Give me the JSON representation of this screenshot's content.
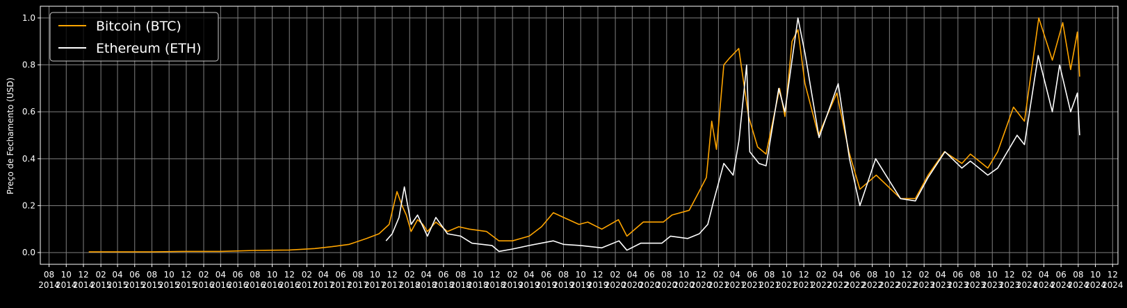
{
  "chart_data": {
    "type": "line",
    "title": "",
    "xlabel": "",
    "ylabel": "Preço de Fechamento (USD)",
    "xlim": [
      "2014-07-01",
      "2024-12-20"
    ],
    "ylim": [
      -0.05,
      1.05
    ],
    "yticks": [
      0.0,
      0.2,
      0.4,
      0.6,
      0.8,
      1.0
    ],
    "ytick_labels": [
      "0.0",
      "0.2",
      "0.4",
      "0.6",
      "0.8",
      "1.0"
    ],
    "xticks": [
      {
        "date": "2014-08-01",
        "month": "08",
        "year": "2014"
      },
      {
        "date": "2014-10-01",
        "month": "10",
        "year": "2014"
      },
      {
        "date": "2014-12-01",
        "month": "12",
        "year": "2014"
      },
      {
        "date": "2015-02-01",
        "month": "02",
        "year": "2015"
      },
      {
        "date": "2015-04-01",
        "month": "04",
        "year": "2015"
      },
      {
        "date": "2015-06-01",
        "month": "06",
        "year": "2015"
      },
      {
        "date": "2015-08-01",
        "month": "08",
        "year": "2015"
      },
      {
        "date": "2015-10-01",
        "month": "10",
        "year": "2015"
      },
      {
        "date": "2015-12-01",
        "month": "12",
        "year": "2015"
      },
      {
        "date": "2016-02-01",
        "month": "02",
        "year": "2016"
      },
      {
        "date": "2016-04-01",
        "month": "04",
        "year": "2016"
      },
      {
        "date": "2016-06-01",
        "month": "06",
        "year": "2016"
      },
      {
        "date": "2016-08-01",
        "month": "08",
        "year": "2016"
      },
      {
        "date": "2016-10-01",
        "month": "10",
        "year": "2016"
      },
      {
        "date": "2016-12-01",
        "month": "12",
        "year": "2016"
      },
      {
        "date": "2017-02-01",
        "month": "02",
        "year": "2017"
      },
      {
        "date": "2017-04-01",
        "month": "04",
        "year": "2017"
      },
      {
        "date": "2017-06-01",
        "month": "06",
        "year": "2017"
      },
      {
        "date": "2017-08-01",
        "month": "08",
        "year": "2017"
      },
      {
        "date": "2017-10-01",
        "month": "10",
        "year": "2017"
      },
      {
        "date": "2017-12-01",
        "month": "12",
        "year": "2017"
      },
      {
        "date": "2018-02-01",
        "month": "02",
        "year": "2018"
      },
      {
        "date": "2018-04-01",
        "month": "04",
        "year": "2018"
      },
      {
        "date": "2018-06-01",
        "month": "06",
        "year": "2018"
      },
      {
        "date": "2018-08-01",
        "month": "08",
        "year": "2018"
      },
      {
        "date": "2018-10-01",
        "month": "10",
        "year": "2018"
      },
      {
        "date": "2018-12-01",
        "month": "12",
        "year": "2018"
      },
      {
        "date": "2019-02-01",
        "month": "02",
        "year": "2019"
      },
      {
        "date": "2019-04-01",
        "month": "04",
        "year": "2019"
      },
      {
        "date": "2019-06-01",
        "month": "06",
        "year": "2019"
      },
      {
        "date": "2019-08-01",
        "month": "08",
        "year": "2019"
      },
      {
        "date": "2019-10-01",
        "month": "10",
        "year": "2019"
      },
      {
        "date": "2019-12-01",
        "month": "12",
        "year": "2019"
      },
      {
        "date": "2020-02-01",
        "month": "02",
        "year": "2020"
      },
      {
        "date": "2020-04-01",
        "month": "04",
        "year": "2020"
      },
      {
        "date": "2020-06-01",
        "month": "06",
        "year": "2020"
      },
      {
        "date": "2020-08-01",
        "month": "08",
        "year": "2020"
      },
      {
        "date": "2020-10-01",
        "month": "10",
        "year": "2020"
      },
      {
        "date": "2020-12-01",
        "month": "12",
        "year": "2020"
      },
      {
        "date": "2021-02-01",
        "month": "02",
        "year": "2021"
      },
      {
        "date": "2021-04-01",
        "month": "04",
        "year": "2021"
      },
      {
        "date": "2021-06-01",
        "month": "06",
        "year": "2021"
      },
      {
        "date": "2021-08-01",
        "month": "08",
        "year": "2021"
      },
      {
        "date": "2021-10-01",
        "month": "10",
        "year": "2021"
      },
      {
        "date": "2021-12-01",
        "month": "12",
        "year": "2021"
      },
      {
        "date": "2022-02-01",
        "month": "02",
        "year": "2022"
      },
      {
        "date": "2022-04-01",
        "month": "04",
        "year": "2022"
      },
      {
        "date": "2022-06-01",
        "month": "06",
        "year": "2022"
      },
      {
        "date": "2022-08-01",
        "month": "08",
        "year": "2022"
      },
      {
        "date": "2022-10-01",
        "month": "10",
        "year": "2022"
      },
      {
        "date": "2022-12-01",
        "month": "12",
        "year": "2022"
      },
      {
        "date": "2023-02-01",
        "month": "02",
        "year": "2023"
      },
      {
        "date": "2023-04-01",
        "month": "04",
        "year": "2023"
      },
      {
        "date": "2023-06-01",
        "month": "06",
        "year": "2023"
      },
      {
        "date": "2023-08-01",
        "month": "08",
        "year": "2023"
      },
      {
        "date": "2023-10-01",
        "month": "10",
        "year": "2023"
      },
      {
        "date": "2023-12-01",
        "month": "12",
        "year": "2023"
      },
      {
        "date": "2024-02-01",
        "month": "02",
        "year": "2024"
      },
      {
        "date": "2024-04-01",
        "month": "04",
        "year": "2024"
      },
      {
        "date": "2024-06-01",
        "month": "06",
        "year": "2024"
      },
      {
        "date": "2024-08-01",
        "month": "08",
        "year": "2024"
      },
      {
        "date": "2024-10-01",
        "month": "10",
        "year": "2024"
      },
      {
        "date": "2024-12-01",
        "month": "12",
        "year": "2024"
      }
    ],
    "grid": true,
    "legend_position": "top-left",
    "series": [
      {
        "name": "Bitcoin (BTC)",
        "color": "#ffa500",
        "points": [
          [
            "2014-12-20",
            0.003
          ],
          [
            "2015-04-01",
            0.003
          ],
          [
            "2015-08-01",
            0.003
          ],
          [
            "2015-12-01",
            0.005
          ],
          [
            "2016-04-01",
            0.005
          ],
          [
            "2016-08-01",
            0.009
          ],
          [
            "2016-12-01",
            0.011
          ],
          [
            "2017-03-01",
            0.017
          ],
          [
            "2017-05-01",
            0.025
          ],
          [
            "2017-07-01",
            0.035
          ],
          [
            "2017-09-01",
            0.06
          ],
          [
            "2017-10-15",
            0.08
          ],
          [
            "2017-11-20",
            0.12
          ],
          [
            "2017-12-18",
            0.26
          ],
          [
            "2018-01-05",
            0.2
          ],
          [
            "2018-01-20",
            0.16
          ],
          [
            "2018-02-06",
            0.09
          ],
          [
            "2018-03-01",
            0.14
          ],
          [
            "2018-03-20",
            0.12
          ],
          [
            "2018-04-05",
            0.09
          ],
          [
            "2018-05-05",
            0.13
          ],
          [
            "2018-06-15",
            0.09
          ],
          [
            "2018-07-25",
            0.11
          ],
          [
            "2018-09-01",
            0.1
          ],
          [
            "2018-11-01",
            0.09
          ],
          [
            "2018-12-15",
            0.05
          ],
          [
            "2019-02-01",
            0.05
          ],
          [
            "2019-04-01",
            0.07
          ],
          [
            "2019-05-15",
            0.11
          ],
          [
            "2019-06-26",
            0.17
          ],
          [
            "2019-08-01",
            0.15
          ],
          [
            "2019-09-25",
            0.12
          ],
          [
            "2019-10-26",
            0.13
          ],
          [
            "2019-12-15",
            0.1
          ],
          [
            "2020-02-12",
            0.14
          ],
          [
            "2020-03-13",
            0.07
          ],
          [
            "2020-05-10",
            0.13
          ],
          [
            "2020-07-20",
            0.13
          ],
          [
            "2020-08-20",
            0.16
          ],
          [
            "2020-10-20",
            0.18
          ],
          [
            "2020-11-20",
            0.25
          ],
          [
            "2020-12-20",
            0.32
          ],
          [
            "2021-01-08",
            0.56
          ],
          [
            "2021-01-25",
            0.44
          ],
          [
            "2021-02-20",
            0.8
          ],
          [
            "2021-03-13",
            0.83
          ],
          [
            "2021-04-14",
            0.87
          ],
          [
            "2021-05-19",
            0.58
          ],
          [
            "2021-06-20",
            0.45
          ],
          [
            "2021-07-20",
            0.42
          ],
          [
            "2021-09-06",
            0.7
          ],
          [
            "2021-09-25",
            0.58
          ],
          [
            "2021-10-20",
            0.9
          ],
          [
            "2021-11-10",
            0.95
          ],
          [
            "2021-12-05",
            0.72
          ],
          [
            "2022-01-22",
            0.5
          ],
          [
            "2022-03-28",
            0.68
          ],
          [
            "2022-05-10",
            0.43
          ],
          [
            "2022-06-18",
            0.27
          ],
          [
            "2022-08-15",
            0.33
          ],
          [
            "2022-11-10",
            0.23
          ],
          [
            "2023-01-01",
            0.23
          ],
          [
            "2023-02-15",
            0.33
          ],
          [
            "2023-04-14",
            0.43
          ],
          [
            "2023-06-15",
            0.38
          ],
          [
            "2023-07-15",
            0.42
          ],
          [
            "2023-09-15",
            0.36
          ],
          [
            "2023-10-20",
            0.43
          ],
          [
            "2023-12-15",
            0.62
          ],
          [
            "2024-01-23",
            0.56
          ],
          [
            "2024-03-14",
            1.0
          ],
          [
            "2024-05-01",
            0.82
          ],
          [
            "2024-06-07",
            0.98
          ],
          [
            "2024-07-05",
            0.78
          ],
          [
            "2024-07-29",
            0.94
          ],
          [
            "2024-08-06",
            0.75
          ]
        ]
      },
      {
        "name": "Ethereum (ETH)",
        "color": "#ffffff",
        "points": [
          [
            "2017-11-09",
            0.05
          ],
          [
            "2017-12-01",
            0.08
          ],
          [
            "2017-12-25",
            0.15
          ],
          [
            "2018-01-13",
            0.28
          ],
          [
            "2018-02-06",
            0.12
          ],
          [
            "2018-03-01",
            0.16
          ],
          [
            "2018-04-05",
            0.07
          ],
          [
            "2018-05-05",
            0.15
          ],
          [
            "2018-06-15",
            0.08
          ],
          [
            "2018-08-01",
            0.07
          ],
          [
            "2018-09-10",
            0.04
          ],
          [
            "2018-11-20",
            0.03
          ],
          [
            "2018-12-15",
            0.005
          ],
          [
            "2019-02-01",
            0.015
          ],
          [
            "2019-04-01",
            0.03
          ],
          [
            "2019-06-26",
            0.05
          ],
          [
            "2019-08-01",
            0.035
          ],
          [
            "2019-10-01",
            0.03
          ],
          [
            "2019-12-15",
            0.02
          ],
          [
            "2020-02-14",
            0.05
          ],
          [
            "2020-03-13",
            0.01
          ],
          [
            "2020-05-01",
            0.04
          ],
          [
            "2020-07-15",
            0.04
          ],
          [
            "2020-08-15",
            0.07
          ],
          [
            "2020-10-15",
            0.06
          ],
          [
            "2020-11-25",
            0.08
          ],
          [
            "2020-12-25",
            0.12
          ],
          [
            "2021-01-15",
            0.22
          ],
          [
            "2021-02-20",
            0.38
          ],
          [
            "2021-03-25",
            0.33
          ],
          [
            "2021-04-15",
            0.48
          ],
          [
            "2021-05-12",
            0.8
          ],
          [
            "2021-05-23",
            0.43
          ],
          [
            "2021-06-25",
            0.38
          ],
          [
            "2021-07-20",
            0.37
          ],
          [
            "2021-09-03",
            0.7
          ],
          [
            "2021-09-25",
            0.6
          ],
          [
            "2021-10-20",
            0.82
          ],
          [
            "2021-11-10",
            1.0
          ],
          [
            "2021-12-05",
            0.85
          ],
          [
            "2022-01-24",
            0.49
          ],
          [
            "2022-04-02",
            0.72
          ],
          [
            "2022-05-12",
            0.4
          ],
          [
            "2022-06-18",
            0.2
          ],
          [
            "2022-08-13",
            0.4
          ],
          [
            "2022-11-09",
            0.23
          ],
          [
            "2023-01-01",
            0.22
          ],
          [
            "2023-02-15",
            0.32
          ],
          [
            "2023-04-16",
            0.43
          ],
          [
            "2023-06-15",
            0.36
          ],
          [
            "2023-07-15",
            0.39
          ],
          [
            "2023-09-15",
            0.33
          ],
          [
            "2023-10-20",
            0.36
          ],
          [
            "2023-12-28",
            0.5
          ],
          [
            "2024-01-23",
            0.46
          ],
          [
            "2024-03-12",
            0.84
          ],
          [
            "2024-05-01",
            0.6
          ],
          [
            "2024-05-27",
            0.8
          ],
          [
            "2024-07-05",
            0.6
          ],
          [
            "2024-07-29",
            0.68
          ],
          [
            "2024-08-06",
            0.5
          ]
        ]
      }
    ]
  }
}
